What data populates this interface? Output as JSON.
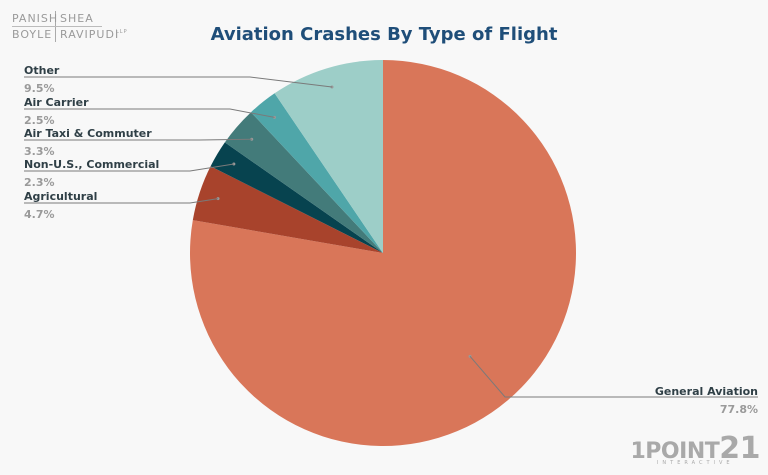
{
  "logo_top_left": {
    "line1_a": "PANISH",
    "line1_b": "SHEA",
    "line2_a": "BOYLE",
    "line2_b": "RAVIPUDI",
    "suffix": "LLP"
  },
  "logo_bottom_right": {
    "main": "1POINT",
    "number": "21",
    "sub": "INTERACTIVE"
  },
  "chart_data": {
    "type": "pie",
    "title": "Aviation Crashes By Type of Flight",
    "categories": [
      "General Aviation",
      "Agricultural",
      "Non-U.S., Commercial",
      "Air Taxi & Commuter",
      "Air Carrier",
      "Other"
    ],
    "values": [
      77.8,
      4.7,
      2.3,
      3.3,
      2.5,
      9.5
    ],
    "labels": [
      "77.8%",
      "4.7%",
      "2.3%",
      "3.3%",
      "2.5%",
      "9.5%"
    ],
    "colors": [
      "#d97659",
      "#a8432c",
      "#07434f",
      "#437b7a",
      "#4fa6a9",
      "#9dcec8"
    ],
    "legend_position": "callout labels",
    "start_angle": "12 o'clock, clockwise"
  }
}
